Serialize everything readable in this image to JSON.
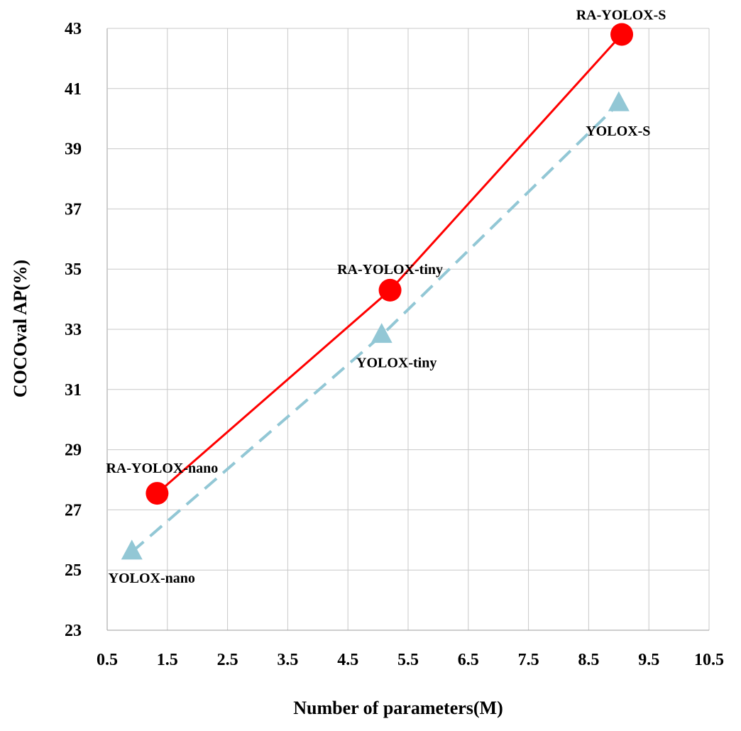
{
  "chart_data": {
    "type": "line",
    "xlabel": "Number of parameters(M)",
    "ylabel": "COCOval AP(%)",
    "xlim": [
      0.5,
      10.5
    ],
    "ylim": [
      23,
      43
    ],
    "x_ticks": [
      "0.5",
      "1.5",
      "2.5",
      "3.5",
      "4.5",
      "5.5",
      "6.5",
      "7.5",
      "8.5",
      "9.5",
      "10.5"
    ],
    "y_ticks": [
      "23",
      "25",
      "27",
      "29",
      "31",
      "33",
      "35",
      "37",
      "39",
      "41",
      "43"
    ],
    "grid": true,
    "legend": "none",
    "series": [
      {
        "color": "#ff0000",
        "line_style": "solid",
        "marker": "circle",
        "points": [
          {
            "x": 1.33,
            "y": 27.55,
            "label": "RA-YOLOX-nano"
          },
          {
            "x": 5.2,
            "y": 34.3,
            "label": "RA-YOLOX-tiny"
          },
          {
            "x": 9.05,
            "y": 42.8,
            "label": "RA-YOLOX-S"
          }
        ]
      },
      {
        "color": "#92c7d5",
        "line_style": "dashed",
        "marker": "triangle",
        "points": [
          {
            "x": 0.91,
            "y": 25.6,
            "label": "YOLOX-nano"
          },
          {
            "x": 5.06,
            "y": 32.8,
            "label": "YOLOX-tiny"
          },
          {
            "x": 9.0,
            "y": 40.5,
            "label": "YOLOX-S"
          }
        ]
      }
    ]
  }
}
